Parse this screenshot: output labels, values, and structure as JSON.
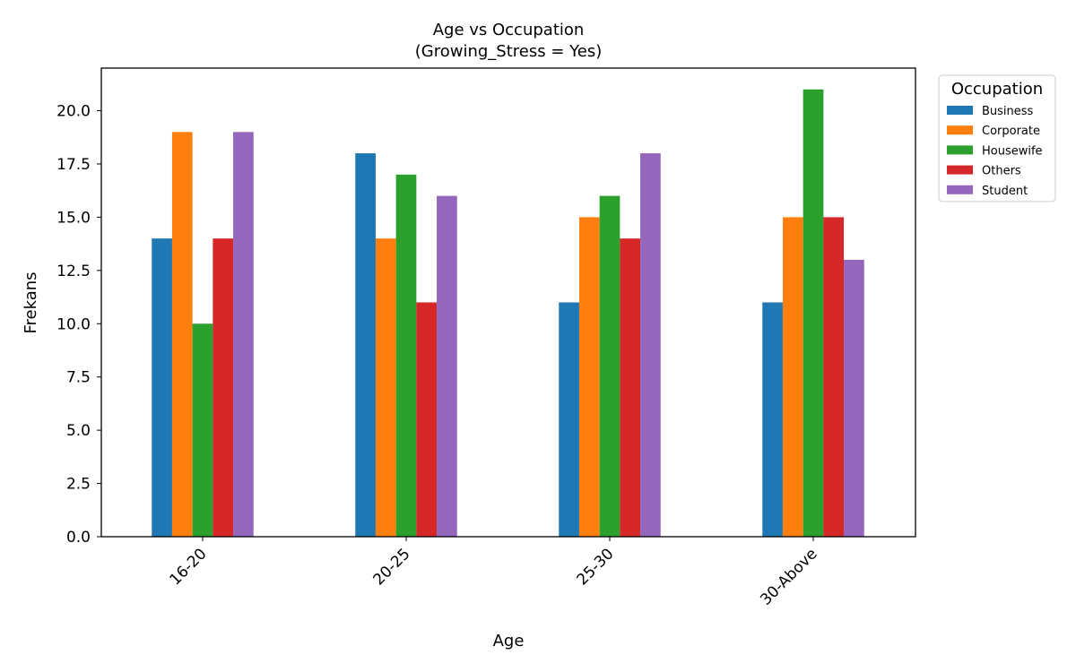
{
  "chart_data": {
    "type": "bar",
    "title": [
      "Age vs Occupation",
      "(Growing_Stress = Yes)"
    ],
    "xlabel": "Age",
    "ylabel": "Frekans",
    "categories": [
      "16-20",
      "20-25",
      "25-30",
      "30-Above"
    ],
    "ylim": [
      0,
      22
    ],
    "yticks": [
      "0.0",
      "2.5",
      "5.0",
      "7.5",
      "10.0",
      "12.5",
      "15.0",
      "17.5",
      "20.0"
    ],
    "ytick_values": [
      0,
      2.5,
      5,
      7.5,
      10,
      12.5,
      15,
      17.5,
      20
    ],
    "grid": false,
    "legend": {
      "title": "Occupation",
      "placement": "outside-right"
    },
    "series": [
      {
        "name": "Business",
        "color": "#1f77b4",
        "values": [
          14,
          18,
          11,
          11
        ]
      },
      {
        "name": "Corporate",
        "color": "#ff7f0e",
        "values": [
          19,
          14,
          15,
          15
        ]
      },
      {
        "name": "Housewife",
        "color": "#2ca02c",
        "values": [
          10,
          17,
          16,
          21
        ]
      },
      {
        "name": "Others",
        "color": "#d62728",
        "values": [
          14,
          11,
          14,
          15
        ]
      },
      {
        "name": "Student",
        "color": "#9467bd",
        "values": [
          19,
          16,
          18,
          13
        ]
      }
    ]
  }
}
